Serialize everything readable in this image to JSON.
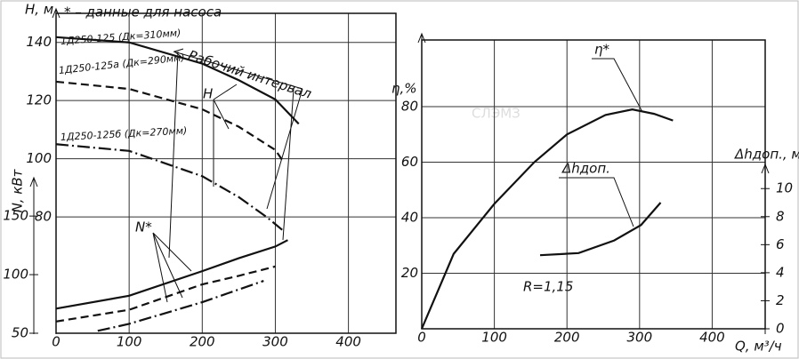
{
  "chart_data": [
    {
      "type": "line",
      "ylabel": "Н, м",
      "y2label": "N, кВт",
      "note": "* – данные для насоса",
      "annotations": [
        "Рабочий интервал",
        "H",
        "N*"
      ],
      "xlim": [
        0,
        465
      ],
      "xticks": [
        0,
        100,
        200,
        300,
        400
      ],
      "ylim": [
        40,
        150
      ],
      "yticks": [
        80,
        100,
        120,
        140
      ],
      "y2lim": [
        50,
        323
      ],
      "y2ticks": [
        50,
        100,
        150
      ],
      "grid": true,
      "series": [
        {
          "name": "1Д250-125 (Дк=310мм)",
          "color": "#111111",
          "style": "solid",
          "x": [
            0,
            100,
            200,
            250,
            300,
            332
          ],
          "values": [
            141.8,
            140,
            132.7,
            127,
            120.4,
            112
          ]
        },
        {
          "name": "1Д250-125а (Дк=290мм)",
          "color": "#111111",
          "style": "dashed",
          "x": [
            0,
            100,
            200,
            250,
            300,
            311
          ],
          "values": [
            126.5,
            124,
            117,
            111,
            103,
            99
          ]
        },
        {
          "name": "1Д250-125б (Дк=270мм)",
          "color": "#111111",
          "style": "dashdot",
          "x": [
            0,
            100,
            200,
            250,
            289,
            311
          ],
          "values": [
            105,
            102.7,
            94,
            86.8,
            79.8,
            75.2
          ]
        },
        {
          "color": "#111111",
          "style": "solid",
          "axis": "y2",
          "x": [
            0,
            100,
            200,
            250,
            300,
            317
          ],
          "values": [
            71,
            82,
            103,
            114,
            124,
            129.5
          ]
        },
        {
          "color": "#111111",
          "style": "dashed",
          "axis": "y2",
          "x": [
            0,
            100,
            200,
            250,
            300
          ],
          "values": [
            60,
            70,
            91.7,
            99,
            107
          ]
        },
        {
          "color": "#111111",
          "style": "dashdot",
          "axis": "y2",
          "x": [
            57,
            100,
            200,
            284
          ],
          "values": [
            52,
            58,
            76.5,
            94.7
          ]
        }
      ]
    },
    {
      "type": "line",
      "xlabel": "Q, м³/ч",
      "ylabel": "η,%",
      "y2label": "Δhдоп., м",
      "annotations": [
        "R=1,15"
      ],
      "watermark": "СЛЭМЗ",
      "xlim": [
        0,
        473
      ],
      "xticks": [
        0,
        100,
        200,
        300,
        400
      ],
      "ylim": [
        0,
        104
      ],
      "yticks": [
        20,
        40,
        60,
        80
      ],
      "y2lim": [
        0,
        20.6
      ],
      "y2ticks": [
        0,
        2,
        4,
        6,
        8,
        10
      ],
      "grid": true,
      "series": [
        {
          "name": "η*",
          "color": "#111111",
          "style": "solid",
          "x": [
            0,
            44,
            100,
            155,
            200,
            253,
            290,
            320,
            346
          ],
          "values": [
            0,
            27,
            45,
            60,
            70,
            77,
            79,
            77.4,
            75
          ]
        },
        {
          "name": "Δhдоп.",
          "color": "#111111",
          "style": "solid",
          "axis": "y2",
          "x": [
            163,
            216,
            265,
            302,
            329
          ],
          "values": [
            5.25,
            5.4,
            6.3,
            7.4,
            9.0
          ]
        }
      ]
    }
  ]
}
